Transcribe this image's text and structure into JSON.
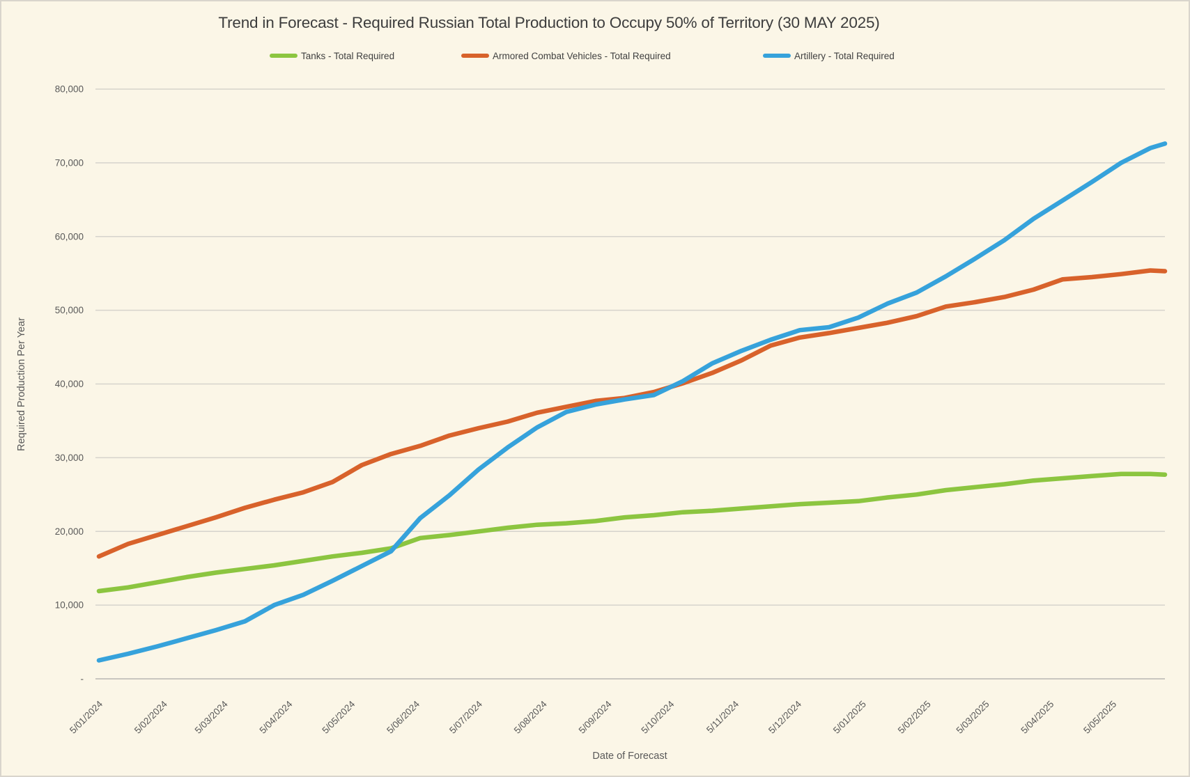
{
  "window": {
    "background_color": "#FBF6E7",
    "border_color": "#D9D5CC"
  },
  "header": {
    "title": "Trend in Forecast - Required Russian Total Production to Occupy 50% of Territory (30 MAY 2025)"
  },
  "legend": {
    "items": [
      {
        "label": "Tanks - Total Required",
        "color": "#8CC540"
      },
      {
        "label": "Armored Combat Vehicles - Total Required",
        "color": "#D8622B"
      },
      {
        "label": "Artillery - Total Required",
        "color": "#36A2DB"
      }
    ]
  },
  "axes": {
    "x_title": "Date of Forecast",
    "y_title": "Required Production Per Year"
  },
  "chart_data": {
    "type": "line",
    "title": "Trend in Forecast - Required Russian Total Production to Occupy 50% of Territory (30 MAY 2025)",
    "xlabel": "Date of Forecast",
    "ylabel": "Required Production Per Year",
    "ylim": [
      0,
      80000
    ],
    "grid": "horizontal",
    "legend_position": "top",
    "grid_color": "#D6D3CC",
    "axis_line_color": "#C9C6BF",
    "tick_label_color": "#595959",
    "y_ticks": [
      {
        "value": 0,
        "label": "-"
      },
      {
        "value": 10000,
        "label": "10,000"
      },
      {
        "value": 20000,
        "label": "20,000"
      },
      {
        "value": 30000,
        "label": "30,000"
      },
      {
        "value": 40000,
        "label": "40,000"
      },
      {
        "value": 50000,
        "label": "50,000"
      },
      {
        "value": 60000,
        "label": "60,000"
      },
      {
        "value": 70000,
        "label": "70,000"
      },
      {
        "value": 80000,
        "label": "80,000"
      }
    ],
    "x_ticks": [
      {
        "label": "5/01/2024",
        "iso": "2024-01-05"
      },
      {
        "label": "5/02/2024",
        "iso": "2024-02-05"
      },
      {
        "label": "5/03/2024",
        "iso": "2024-03-05"
      },
      {
        "label": "5/04/2024",
        "iso": "2024-04-05"
      },
      {
        "label": "5/05/2024",
        "iso": "2024-05-05"
      },
      {
        "label": "5/06/2024",
        "iso": "2024-06-05"
      },
      {
        "label": "5/07/2024",
        "iso": "2024-07-05"
      },
      {
        "label": "5/08/2024",
        "iso": "2024-08-05"
      },
      {
        "label": "5/09/2024",
        "iso": "2024-09-05"
      },
      {
        "label": "5/10/2024",
        "iso": "2024-10-05"
      },
      {
        "label": "5/11/2024",
        "iso": "2024-11-05"
      },
      {
        "label": "5/12/2024",
        "iso": "2024-12-05"
      },
      {
        "label": "5/01/2025",
        "iso": "2025-01-05"
      },
      {
        "label": "5/02/2025",
        "iso": "2025-02-05"
      },
      {
        "label": "5/03/2025",
        "iso": "2025-03-05"
      },
      {
        "label": "5/04/2025",
        "iso": "2025-04-05"
      },
      {
        "label": "5/05/2025",
        "iso": "2025-05-05"
      }
    ],
    "dates": [
      "2024-01-05",
      "2024-01-19",
      "2024-02-02",
      "2024-02-16",
      "2024-03-01",
      "2024-03-15",
      "2024-03-29",
      "2024-04-12",
      "2024-04-26",
      "2024-05-10",
      "2024-05-24",
      "2024-06-07",
      "2024-06-21",
      "2024-07-05",
      "2024-07-19",
      "2024-08-02",
      "2024-08-16",
      "2024-08-30",
      "2024-09-13",
      "2024-09-27",
      "2024-10-11",
      "2024-10-25",
      "2024-11-08",
      "2024-11-22",
      "2024-12-06",
      "2024-12-20",
      "2025-01-03",
      "2025-01-17",
      "2025-01-31",
      "2025-02-14",
      "2025-02-28",
      "2025-03-14",
      "2025-03-28",
      "2025-04-11",
      "2025-04-25",
      "2025-05-09",
      "2025-05-23",
      "2025-05-30"
    ],
    "series": [
      {
        "name": "Tanks - Total Required",
        "color": "#8CC540",
        "values": [
          11900,
          12400,
          13100,
          13800,
          14400,
          14900,
          15400,
          16000,
          16600,
          17100,
          17700,
          19100,
          19500,
          20000,
          20500,
          20900,
          21100,
          21400,
          21900,
          22200,
          22600,
          22800,
          23100,
          23400,
          23700,
          23900,
          24100,
          24600,
          25000,
          25600,
          26000,
          26400,
          26900,
          27200,
          27500,
          27800,
          27800,
          27700
        ]
      },
      {
        "name": "Armored Combat Vehicles - Total Required",
        "color": "#D8622B",
        "values": [
          16600,
          18300,
          19500,
          20700,
          21900,
          23200,
          24300,
          25300,
          26700,
          29000,
          30500,
          31600,
          33000,
          34000,
          34900,
          36100,
          36900,
          37700,
          38100,
          38900,
          40100,
          41500,
          43200,
          45200,
          46300,
          46900,
          47600,
          48300,
          49200,
          50500,
          51100,
          51800,
          52800,
          54200,
          54500,
          54900,
          55400,
          55300
        ]
      },
      {
        "name": "Artillery - Total Required",
        "color": "#36A2DB",
        "values": [
          2500,
          3400,
          4400,
          5500,
          6600,
          7800,
          10000,
          11400,
          13300,
          15300,
          17300,
          21800,
          24900,
          28400,
          31400,
          34100,
          36200,
          37200,
          37900,
          38500,
          40400,
          42800,
          44500,
          46000,
          47300,
          47700,
          49000,
          50900,
          52400,
          54600,
          57000,
          59500,
          62400,
          64900,
          67400,
          70000,
          72000,
          72600
        ]
      }
    ]
  }
}
